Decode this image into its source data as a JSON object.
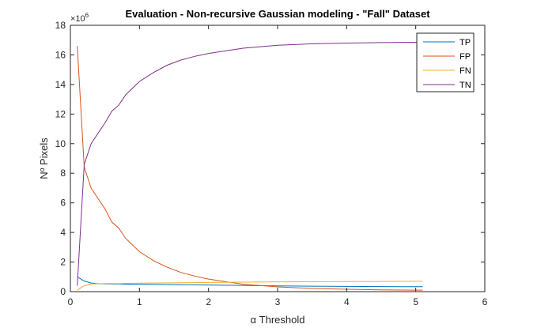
{
  "chart_data": {
    "type": "line",
    "title": "Evaluation - Non-recursive Gaussian modeling - \"Fall\" Dataset",
    "xlabel": "α Threshold",
    "ylabel": "Nº Pixels",
    "y_exponent_label": "×10",
    "y_exponent": "6",
    "xlim": [
      0,
      6
    ],
    "ylim": [
      0,
      18
    ],
    "xticks": [
      "0",
      "1",
      "2",
      "3",
      "4",
      "5",
      "6"
    ],
    "yticks": [
      "0",
      "2",
      "4",
      "6",
      "8",
      "10",
      "12",
      "14",
      "16",
      "18"
    ],
    "grid": false,
    "legend_position": "top-right",
    "x": [
      0.1,
      0.2,
      0.3,
      0.4,
      0.5,
      0.6,
      0.7,
      0.8,
      1.0,
      1.2,
      1.4,
      1.6,
      1.8,
      2.0,
      2.5,
      3.0,
      3.5,
      4.0,
      4.5,
      5.0,
      5.1
    ],
    "series": [
      {
        "name": "TP",
        "color": "#0072BD",
        "values": [
          1.0,
          0.72,
          0.58,
          0.54,
          0.53,
          0.52,
          0.52,
          0.51,
          0.5,
          0.49,
          0.48,
          0.47,
          0.46,
          0.45,
          0.42,
          0.39,
          0.37,
          0.35,
          0.34,
          0.33,
          0.33
        ]
      },
      {
        "name": "FP",
        "color": "#D95319",
        "values": [
          16.6,
          8.4,
          7.0,
          6.3,
          5.6,
          4.7,
          4.3,
          3.6,
          2.7,
          2.1,
          1.65,
          1.3,
          1.05,
          0.85,
          0.5,
          0.32,
          0.22,
          0.16,
          0.12,
          0.1,
          0.1
        ]
      },
      {
        "name": "FN",
        "color": "#EDB120",
        "values": [
          0.1,
          0.4,
          0.52,
          0.54,
          0.55,
          0.55,
          0.55,
          0.56,
          0.57,
          0.58,
          0.59,
          0.6,
          0.61,
          0.62,
          0.64,
          0.66,
          0.67,
          0.68,
          0.69,
          0.7,
          0.7
        ]
      },
      {
        "name": "TN",
        "color": "#7E2F8E",
        "values": [
          0.4,
          8.6,
          10.0,
          10.7,
          11.4,
          12.2,
          12.6,
          13.3,
          14.2,
          14.8,
          15.3,
          15.65,
          15.9,
          16.1,
          16.45,
          16.65,
          16.75,
          16.8,
          16.83,
          16.85,
          16.86
        ]
      }
    ]
  }
}
